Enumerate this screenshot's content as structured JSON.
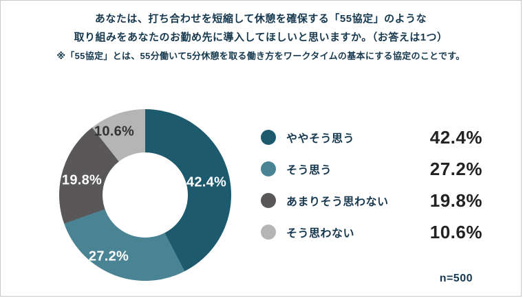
{
  "header": {
    "title_line1": "あなたは、打ち合わせを短縮して休憩を確保する「55協定」のような",
    "title_line2": "取り組みをあなたのお勤め先に導入してほしいと思いますか。（お答えは1つ）",
    "note": "※「55協定」とは、55分働いて5分休憩を取る働き方をワークタイムの基本にする協定のことです。"
  },
  "chart_data": {
    "type": "pie",
    "donut": true,
    "title": "あなたは、打ち合わせを短縮して休憩を確保する「55協定」のような取り組みをあなたのお勤め先に導入してほしいと思いますか。（お答えは1つ）",
    "categories": [
      "ややそう思う",
      "そう思う",
      "あまりそう思わない",
      "そう思わない"
    ],
    "values": [
      42.4,
      27.2,
      19.8,
      10.6
    ],
    "unit": "%",
    "value_labels": [
      "42.4%",
      "27.2%",
      "19.8%",
      "10.6%"
    ],
    "colors": [
      "#1d5a6e",
      "#4a8494",
      "#595757",
      "#b5b5b6"
    ],
    "legend_position": "right",
    "start_angle_deg": 0,
    "direction": "clockwise",
    "sample_size": "n=500"
  },
  "legend": {
    "items": [
      {
        "label": "ややそう思う",
        "value": "42.4%",
        "color": "#1d5a6e"
      },
      {
        "label": "そう思う",
        "value": "27.2%",
        "color": "#4a8494"
      },
      {
        "label": "あまりそう思わない",
        "value": "19.8%",
        "color": "#595757"
      },
      {
        "label": "そう思わない",
        "value": "10.6%",
        "color": "#b5b5b6"
      }
    ]
  },
  "footer": {
    "sample_size": "n=500"
  }
}
